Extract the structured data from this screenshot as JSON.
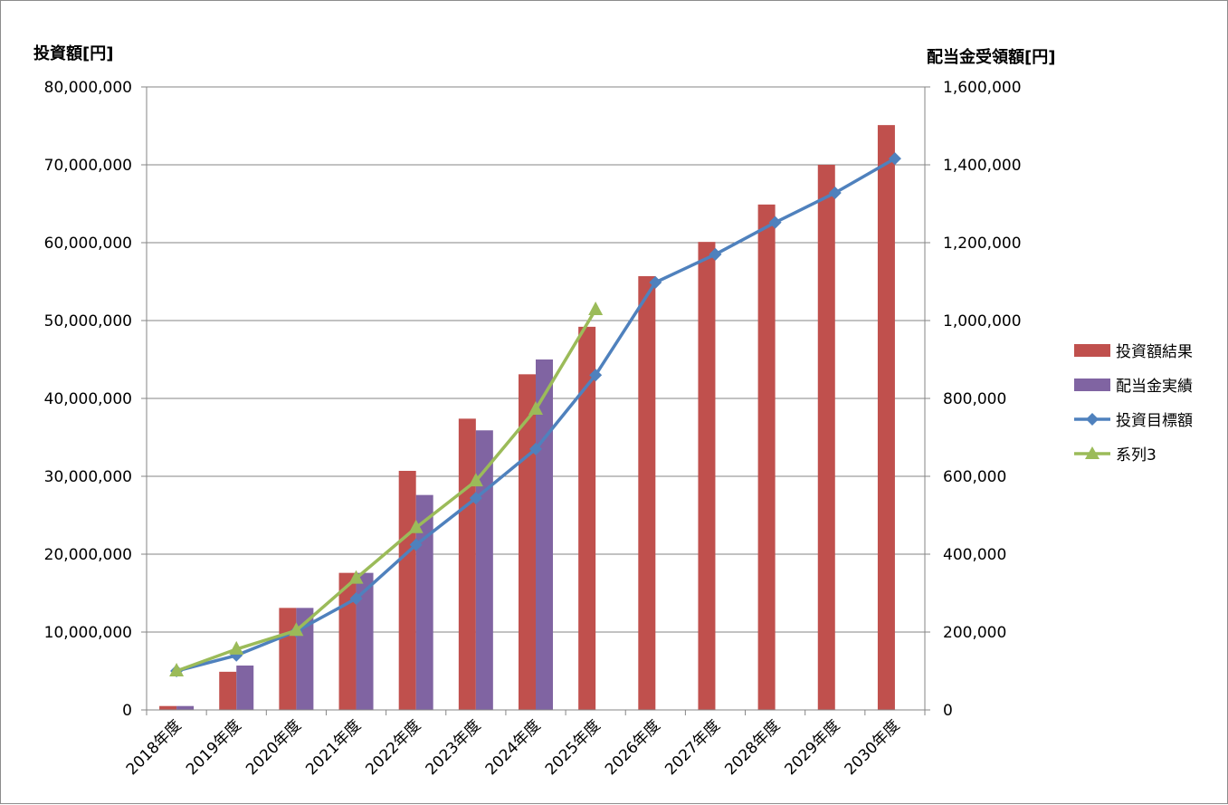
{
  "chart_data": {
    "type": "bar",
    "title": "",
    "ylabel": "投資額[円]",
    "y2label": "配当金受領額[円]",
    "ylim": [
      0,
      80000000
    ],
    "y2lim": [
      0,
      1600000
    ],
    "yticks": [
      "0",
      "10,000,000",
      "20,000,000",
      "30,000,000",
      "40,000,000",
      "50,000,000",
      "60,000,000",
      "70,000,000",
      "80,000,000"
    ],
    "y2ticks": [
      "0",
      "200,000",
      "400,000",
      "600,000",
      "800,000",
      "1,000,000",
      "1,200,000",
      "1,400,000",
      "1,600,000"
    ],
    "grid": true,
    "legend_position": "right",
    "categories": [
      "2018年度",
      "2019年度",
      "2020年度",
      "2021年度",
      "2022年度",
      "2023年度",
      "2024年度",
      "2025年度",
      "2026年度",
      "2027年度",
      "2028年度",
      "2029年度",
      "2030年度"
    ],
    "series": [
      {
        "name": "投資額結果",
        "kind": "bar",
        "color": "#c0504d",
        "values": [
          500000,
          4900000,
          13100000,
          17600000,
          30700000,
          37400000,
          43100000,
          49200000,
          55700000,
          60100000,
          64900000,
          70000000,
          75100000
        ]
      },
      {
        "name": "配当金実績",
        "kind": "bar",
        "color": "#8064a2",
        "values": [
          500000,
          5700000,
          13100000,
          17600000,
          27600000,
          35900000,
          45000000,
          null,
          null,
          null,
          null,
          null,
          null
        ]
      },
      {
        "name": "投資目標額",
        "kind": "line",
        "marker": "diamond",
        "color": "#4f81bd",
        "values": [
          5000000,
          7000000,
          10100000,
          14300000,
          21200000,
          27200000,
          33500000,
          43000000,
          54900000,
          58500000,
          62600000,
          66400000,
          70800000
        ]
      },
      {
        "name": "系列3",
        "kind": "line",
        "marker": "triangle",
        "color": "#9bbb59",
        "values": [
          5000000,
          7800000,
          10200000,
          16900000,
          23400000,
          29400000,
          38600000,
          51400000,
          null,
          null,
          null,
          null,
          null
        ]
      }
    ]
  }
}
